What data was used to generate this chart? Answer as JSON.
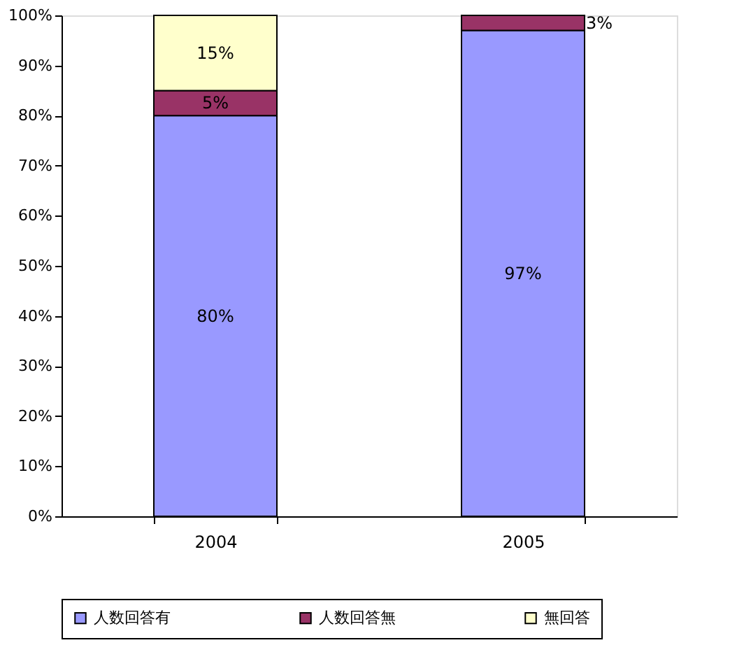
{
  "chart_data": {
    "type": "bar",
    "stacked": true,
    "categories": [
      "2004",
      "2005"
    ],
    "series": [
      {
        "name": "人数回答有",
        "color": "#9999ff",
        "values": [
          80,
          97
        ],
        "value_labels": [
          "80%",
          "97%"
        ]
      },
      {
        "name": "人数回答無",
        "color": "#993366",
        "values": [
          5,
          3
        ],
        "value_labels": [
          "5%",
          "3%"
        ]
      },
      {
        "name": "無回答",
        "color": "#ffffcc",
        "values": [
          15,
          0
        ],
        "value_labels": [
          "15%",
          null
        ]
      }
    ],
    "ylim": [
      0,
      100
    ],
    "yticks": [
      {
        "value": 0,
        "label": "0%"
      },
      {
        "value": 10,
        "label": "10%"
      },
      {
        "value": 20,
        "label": "20%"
      },
      {
        "value": 30,
        "label": "30%"
      },
      {
        "value": 40,
        "label": "40%"
      },
      {
        "value": 50,
        "label": "50%"
      },
      {
        "value": 60,
        "label": "60%"
      },
      {
        "value": 70,
        "label": "70%"
      },
      {
        "value": 80,
        "label": "80%"
      },
      {
        "value": 90,
        "label": "90%"
      },
      {
        "value": 100,
        "label": "100%"
      }
    ],
    "grid": false,
    "legend": "bottom"
  }
}
